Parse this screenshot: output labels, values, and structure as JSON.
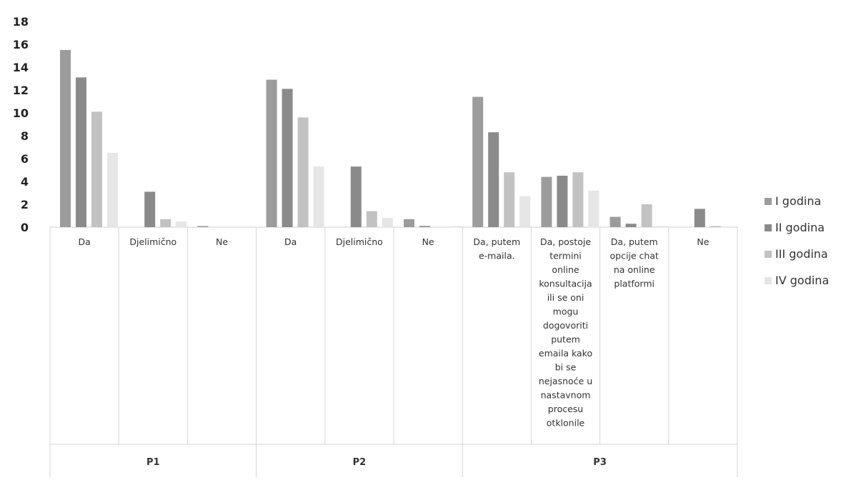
{
  "chart_data": {
    "type": "bar",
    "title": "",
    "xlabel": "",
    "ylabel": "",
    "ylim": [
      0,
      18
    ],
    "yticks": [
      "0",
      "2",
      "4",
      "6",
      "8",
      "10",
      "12",
      "14",
      "16",
      "18"
    ],
    "grid": false,
    "legend_position": "right",
    "groups": [
      {
        "label": "P1",
        "categories": [
          "Da",
          "Djelimično",
          "Ne"
        ]
      },
      {
        "label": "P2",
        "categories": [
          "Da",
          "Djelimično",
          "Ne"
        ]
      },
      {
        "label": "P3",
        "categories": [
          "Da, putem e-maila.",
          "Da, postoje termini online konsultacija ili se oni mogu dogovoriti putem emaila kako bi se nejasnoće u nastavnom procesu otklonile",
          "Da, putem opcije chat na online platformi",
          "Ne"
        ]
      }
    ],
    "series": [
      {
        "name": "I godina",
        "color": "#9c9c9c",
        "values": [
          15.5,
          0.0,
          0.1,
          12.9,
          0.0,
          0.7,
          11.4,
          4.4,
          0.9,
          0.0
        ]
      },
      {
        "name": "II godina",
        "color": "#8a8a8a",
        "values": [
          13.1,
          3.1,
          0.0,
          12.1,
          5.3,
          0.1,
          8.3,
          4.5,
          0.3,
          1.6
        ]
      },
      {
        "name": "III godina",
        "color": "#c2c2c2",
        "values": [
          10.1,
          0.7,
          0.0,
          9.6,
          1.4,
          0.0,
          4.8,
          4.8,
          2.0,
          0.1
        ]
      },
      {
        "name": "IV godina",
        "color": "#e6e6e6",
        "values": [
          6.5,
          0.5,
          0.0,
          5.3,
          0.8,
          0.1,
          2.7,
          3.2,
          0.1,
          0.0
        ]
      }
    ]
  }
}
